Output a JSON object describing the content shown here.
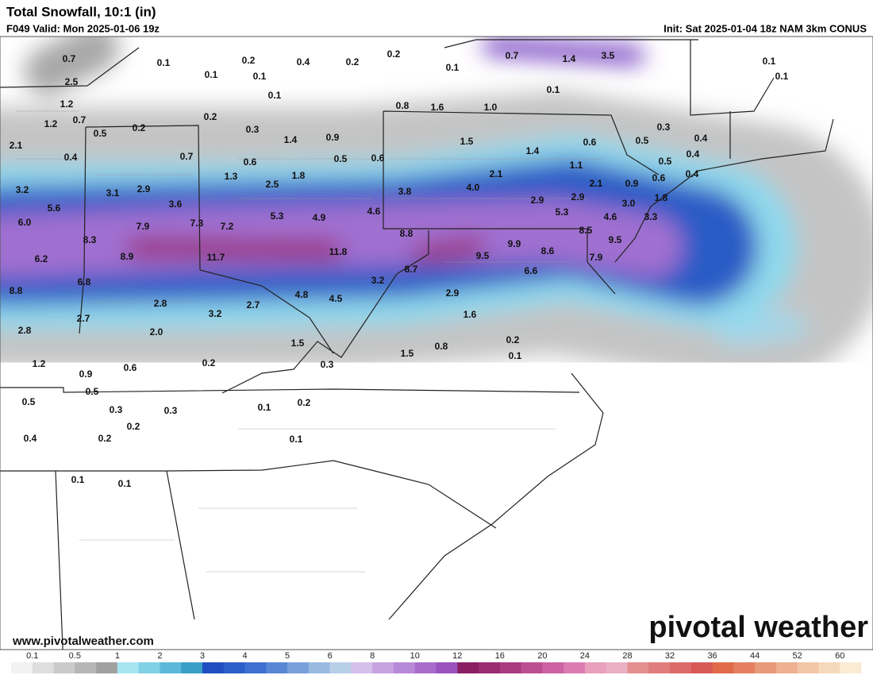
{
  "header": {
    "title": "Total Snowfall, 10:1 (in)",
    "valid": "F049 Valid: Mon 2025-01-06 19z",
    "init": "Init: Sat 2025-01-04 18z NAM 3km CONUS"
  },
  "map": {
    "labels": [
      "0.7",
      "0.1",
      "0.2",
      "0.4",
      "0.2",
      "0.2",
      "0.7",
      "1.4",
      "3.5",
      "0.1",
      "0.1",
      "2.5",
      "0.1",
      "0.1",
      "0.1",
      "0.1",
      "1.2",
      "0.1",
      "0.8",
      "1.6",
      "1.0",
      "1.2",
      "0.7",
      "0.2",
      "0.2",
      "0.5",
      "0.3",
      "1.4",
      "0.9",
      "0.3",
      "2.1",
      "1.5",
      "1.4",
      "0.6",
      "0.5",
      "0.4",
      "0.4",
      "0.7",
      "0.6",
      "0.5",
      "0.6",
      "1.1",
      "0.5",
      "0.4",
      "1.3",
      "1.8",
      "2.1",
      "0.4",
      "0.6",
      "2.5",
      "3.2",
      "3.1",
      "2.9",
      "3.8",
      "4.0",
      "2.1",
      "0.9",
      "3.6",
      "5.6",
      "2.9",
      "2.9",
      "1.8",
      "5.3",
      "4.9",
      "4.6",
      "5.3",
      "3.0",
      "6.0",
      "7.9",
      "7.3",
      "7.2",
      "4.6",
      "3.3",
      "8.8",
      "8.3",
      "8.5",
      "9.5",
      "8.9",
      "11.7",
      "11.8",
      "9.9",
      "9.5",
      "8.6",
      "6.2",
      "7.9",
      "8.7",
      "6.6",
      "6.8",
      "3.2",
      "8.8",
      "4.8",
      "4.5",
      "2.9",
      "2.8",
      "2.7",
      "2.7",
      "3.2",
      "1.6",
      "2.8",
      "2.0",
      "0.2",
      "1.5",
      "0.8",
      "1.5",
      "0.1",
      "1.2",
      "0.2",
      "0.3",
      "0.6",
      "0.9",
      "0.5",
      "0.5",
      "0.3",
      "0.3",
      "0.1",
      "0.2",
      "0.2",
      "0.4",
      "0.2",
      "0.1",
      "0.1",
      "0.1"
    ]
  },
  "footer": {
    "url": "www.pivotalweather.com",
    "logo": "pivotal weather"
  },
  "legend": {
    "labels": [
      "0.1",
      "0.5",
      "1",
      "2",
      "3",
      "4",
      "5",
      "6",
      "8",
      "10",
      "12",
      "16",
      "20",
      "24",
      "28",
      "32",
      "36",
      "44",
      "52",
      "60"
    ],
    "colors": [
      "#f2f2f2",
      "#dedede",
      "#cacaca",
      "#b6b6b6",
      "#a0a0a0",
      "#a6e6f2",
      "#80d0e6",
      "#5cb8d8",
      "#3a9fc8",
      "#1f4fc0",
      "#2d5fc8",
      "#3d70d0",
      "#5a86d6",
      "#7aa0dc",
      "#9abae2",
      "#b8cfe8",
      "#d4c0ea",
      "#c7a2e0",
      "#b888d8",
      "#a76ccc",
      "#9a52be",
      "#8a1e64",
      "#9a2a72",
      "#aa3a82",
      "#bc4e92",
      "#cc62a2",
      "#dc7ab2",
      "#e8a0bc",
      "#eab0c4",
      "#e49090",
      "#e07c7c",
      "#dc6a6a",
      "#d85858",
      "#e06a4a",
      "#e48060",
      "#e89a78",
      "#eeb090",
      "#f2c6a6",
      "#f6d8bc",
      "#faecd4"
    ]
  }
}
